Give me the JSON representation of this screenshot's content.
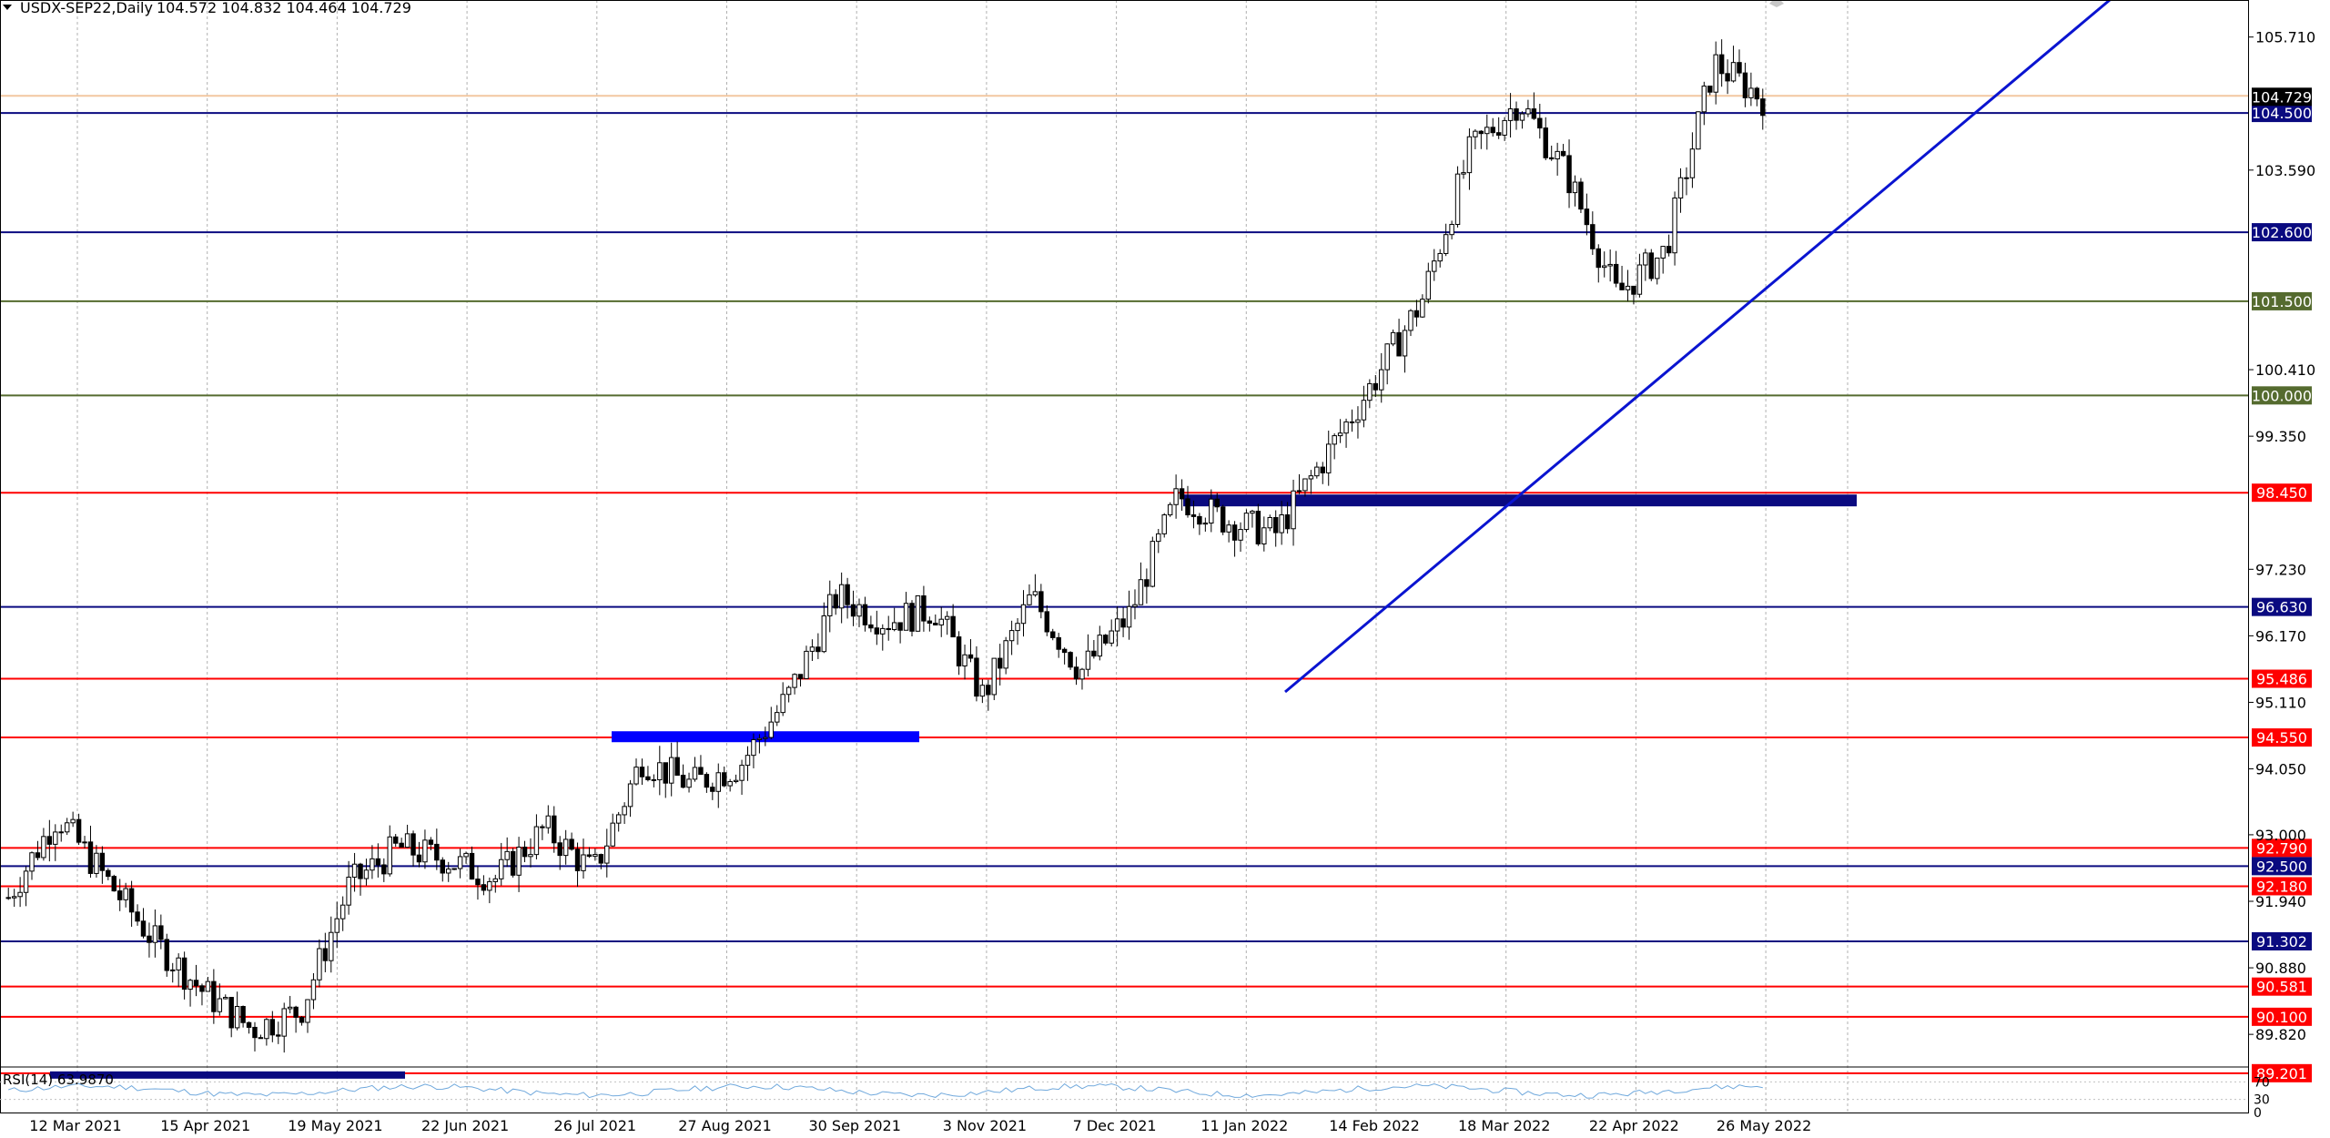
{
  "header": {
    "symbol_label": "USDX-SEP22,Daily",
    "ohlc": "104.572 104.832 104.464 104.729"
  },
  "rsi": {
    "label": "RSI(14) 63.9870",
    "axis_labels": [
      "70",
      "30",
      "0"
    ]
  },
  "price_axis": {
    "ticks": [
      "105.710",
      "103.590",
      "100.410",
      "99.350",
      "97.230",
      "96.170",
      "95.110",
      "94.050",
      "93.000",
      "91.940",
      "90.880",
      "89.820"
    ],
    "current_price": "104.729"
  },
  "time_axis": {
    "labels": [
      "12 Mar 2021",
      "15 Apr 2021",
      "19 May 2021",
      "22 Jun 2021",
      "26 Jul 2021",
      "27 Aug 2021",
      "30 Sep 2021",
      "3 Nov 2021",
      "7 Dec 2021",
      "11 Jan 2022",
      "14 Feb 2022",
      "18 Mar 2022",
      "22 Apr 2022",
      "26 May 2022"
    ]
  },
  "levels": [
    {
      "value": "104.500",
      "color": "#0a0a80"
    },
    {
      "value": "102.600",
      "color": "#0a0a80"
    },
    {
      "value": "101.500",
      "color": "#556b2f"
    },
    {
      "value": "100.000",
      "color": "#556b2f"
    },
    {
      "value": "98.450",
      "color": "#ff0000"
    },
    {
      "value": "96.630",
      "color": "#0a0a80"
    },
    {
      "value": "95.486",
      "color": "#ff0000"
    },
    {
      "value": "94.550",
      "color": "#ff0000"
    },
    {
      "value": "92.790",
      "color": "#ff0000"
    },
    {
      "value": "92.500",
      "color": "#0a0a80"
    },
    {
      "value": "92.180",
      "color": "#ff0000"
    },
    {
      "value": "91.302",
      "color": "#0a0a80"
    },
    {
      "value": "90.581",
      "color": "#ff0000"
    },
    {
      "value": "90.100",
      "color": "#ff0000"
    },
    {
      "value": "89.201",
      "color": "#ff0000"
    }
  ],
  "chart_data": {
    "type": "candlestick",
    "title": "USDX-SEP22,Daily",
    "ylim": [
      89.3,
      106.3
    ],
    "x": [
      "12 Mar 2021",
      "15 Apr 2021",
      "19 May 2021",
      "22 Jun 2021",
      "26 Jul 2021",
      "27 Aug 2021",
      "30 Sep 2021",
      "3 Nov 2021",
      "7 Dec 2021",
      "11 Jan 2022",
      "14 Feb 2022",
      "18 Mar 2022",
      "22 Apr 2022",
      "26 May 2022"
    ],
    "close_path": [
      92.0,
      93.3,
      92.3,
      91.3,
      90.5,
      89.9,
      90.2,
      92.2,
      92.8,
      92.6,
      92.3,
      93.1,
      92.4,
      94.2,
      93.8,
      94.1,
      95.2,
      96.8,
      96.4,
      96.6,
      95.2,
      96.8,
      95.6,
      96.5,
      98.4,
      98.0,
      97.8,
      99.0,
      100.2,
      101.5,
      103.9,
      104.7,
      103.5,
      101.6,
      102.3,
      105.3,
      104.73
    ],
    "trendline": {
      "from": "Jan 2022",
      "to": "May 2022",
      "direction": "up"
    },
    "zones": [
      "98.450",
      "94.550",
      "89.201"
    ],
    "grid": true,
    "legend": "none"
  }
}
